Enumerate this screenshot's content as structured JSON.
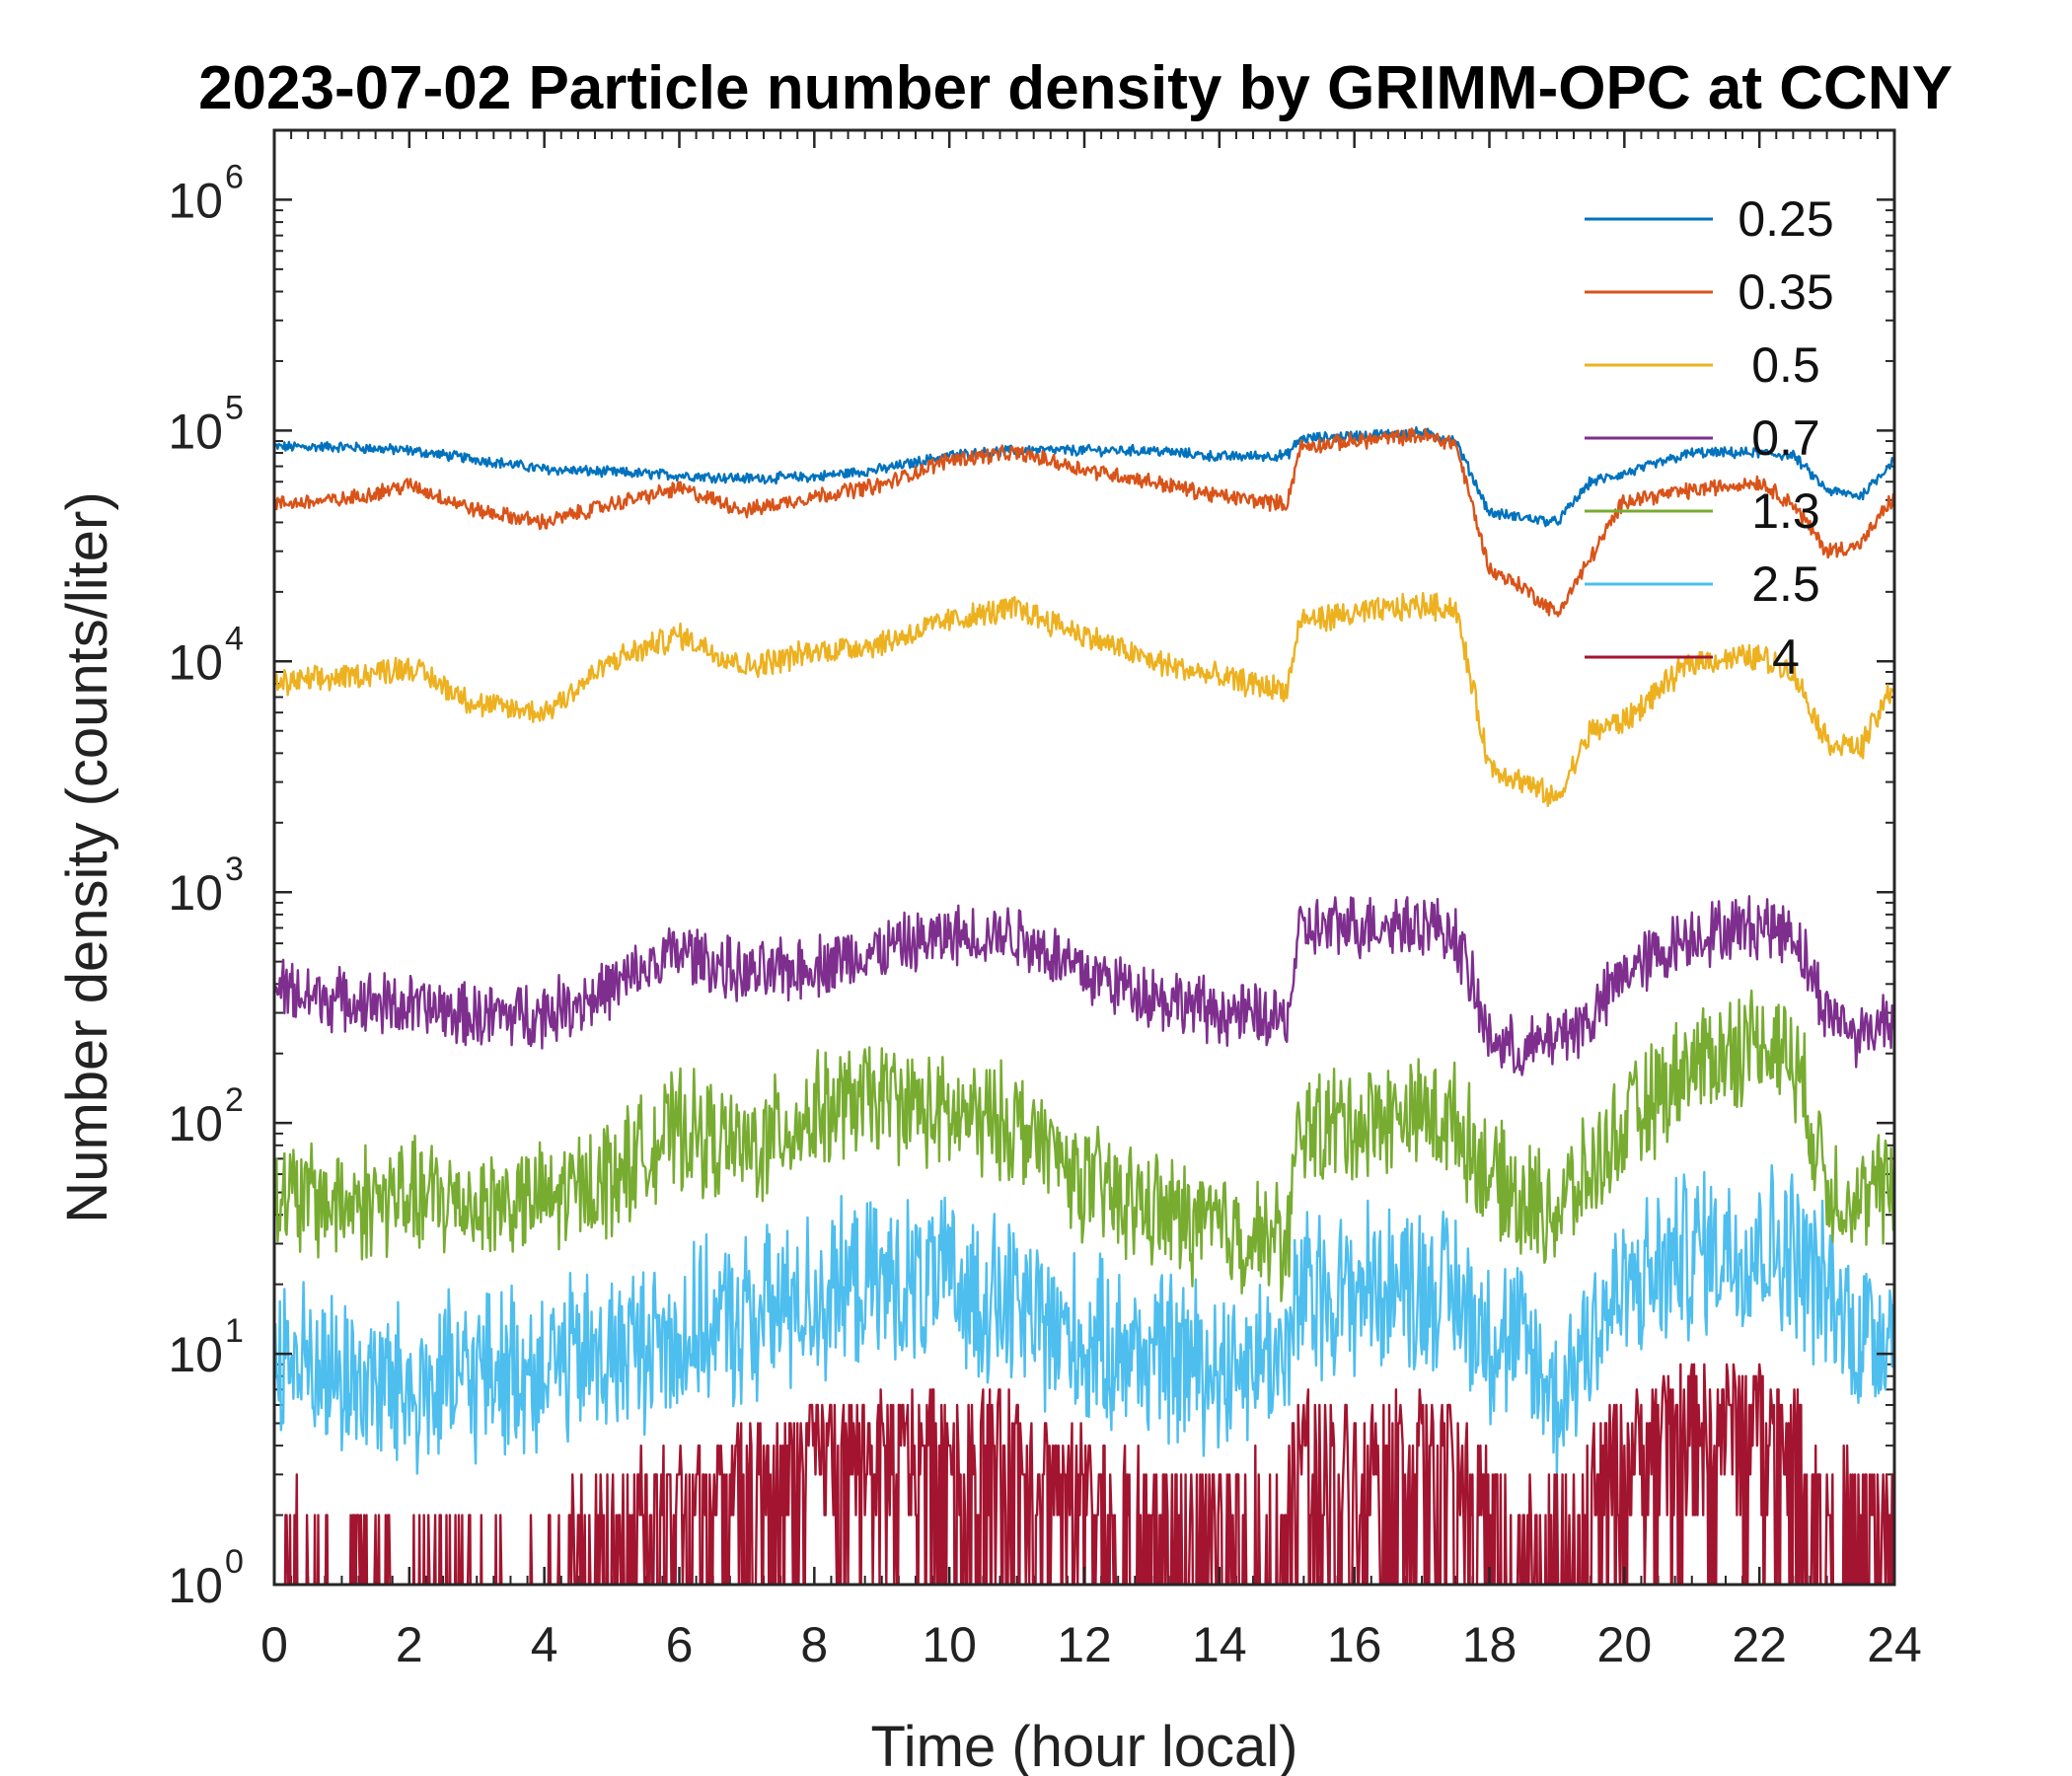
{
  "chart_data": {
    "type": "line",
    "title": "2023-07-02 Particle number density by GRIMM-OPC at CCNY",
    "xlabel": "Time (hour local)",
    "ylabel": "Number density (counts/liter)",
    "xlim": [
      0,
      24
    ],
    "ylim": [
      1,
      2000000
    ],
    "yscale": "log",
    "xticks": [
      0,
      2,
      4,
      6,
      8,
      10,
      12,
      14,
      16,
      18,
      20,
      22,
      24
    ],
    "xtick_labels": [
      "0",
      "2",
      "4",
      "6",
      "8",
      "10",
      "12",
      "14",
      "16",
      "18",
      "20",
      "22",
      "24"
    ],
    "yticks": [
      1,
      10,
      100,
      1000,
      10000,
      100000,
      1000000
    ],
    "ytick_base": "10",
    "ytick_exponents": [
      "0",
      "1",
      "2",
      "3",
      "4",
      "5",
      "6"
    ],
    "legend_position": "top-right",
    "x": [
      0,
      1,
      2,
      3,
      4,
      5,
      6,
      7,
      8,
      9,
      10,
      11,
      12,
      13,
      14,
      15,
      15.2,
      16,
      17,
      17.5,
      18,
      18.5,
      19,
      19.5,
      20,
      21,
      22,
      22.5,
      23,
      23.5,
      24
    ],
    "series": [
      {
        "name": "0.25",
        "color": "#0072BD",
        "noise": 0.02,
        "values": [
          85000,
          85000,
          82000,
          75000,
          68000,
          66000,
          64000,
          62000,
          63000,
          68000,
          78000,
          82000,
          82000,
          82000,
          77000,
          78000,
          92000,
          95000,
          98000,
          90000,
          44000,
          42000,
          40000,
          60000,
          65000,
          80000,
          80000,
          78000,
          55000,
          52000,
          75000
        ]
      },
      {
        "name": "0.35",
        "color": "#D95319",
        "noise": 0.03,
        "values": [
          48000,
          50000,
          58000,
          45000,
          40000,
          48000,
          56000,
          45000,
          52000,
          58000,
          75000,
          80000,
          68000,
          60000,
          52000,
          48000,
          85000,
          90000,
          95000,
          88000,
          25000,
          21000,
          16000,
          28000,
          50000,
          55000,
          60000,
          48000,
          30000,
          32000,
          52000
        ]
      },
      {
        "name": "0.5",
        "color": "#EDB120",
        "noise": 0.05,
        "values": [
          8000,
          8500,
          9500,
          6500,
          6000,
          10000,
          13000,
          9500,
          11000,
          12000,
          15000,
          17000,
          13000,
          10000,
          8500,
          7500,
          15000,
          16000,
          17500,
          17000,
          3500,
          3000,
          2500,
          5000,
          5500,
          10000,
          10500,
          9000,
          4500,
          4200,
          8000
        ]
      },
      {
        "name": "0.7",
        "color": "#7E2F8E",
        "noise": 0.12,
        "values": [
          380,
          340,
          320,
          290,
          300,
          380,
          560,
          430,
          480,
          560,
          640,
          660,
          450,
          360,
          300,
          280,
          680,
          720,
          740,
          650,
          230,
          200,
          240,
          280,
          450,
          650,
          720,
          680,
          300,
          240,
          300
        ]
      },
      {
        "name": "1.3",
        "color": "#77AC30",
        "noise": 0.22,
        "values": [
          48,
          45,
          48,
          45,
          45,
          60,
          95,
          75,
          110,
          130,
          105,
          100,
          55,
          42,
          35,
          30,
          95,
          100,
          110,
          100,
          60,
          45,
          42,
          60,
          95,
          180,
          230,
          200,
          55,
          45,
          55
        ]
      },
      {
        "name": "2.5",
        "color": "#4DBEEE",
        "noise": 0.32,
        "values": [
          10,
          8,
          7,
          8,
          9,
          10,
          12,
          14,
          18,
          20,
          20,
          16,
          11,
          10,
          9,
          10,
          18,
          19,
          20,
          18,
          12,
          11,
          6,
          13,
          18,
          28,
          30,
          28,
          18,
          12,
          14
        ]
      },
      {
        "name": "4",
        "color": "#A2142F",
        "noise": 0.0,
        "values": [
          1.5,
          1.3,
          1.2,
          1.2,
          1.2,
          1.8,
          2.2,
          2.5,
          3.5,
          3.5,
          4,
          3.5,
          2.5,
          1.8,
          1.8,
          2,
          3.5,
          3.5,
          3.5,
          3.2,
          2,
          1.5,
          1.5,
          2.5,
          3.5,
          5,
          5,
          4,
          2,
          1.8,
          2
        ]
      }
    ]
  }
}
